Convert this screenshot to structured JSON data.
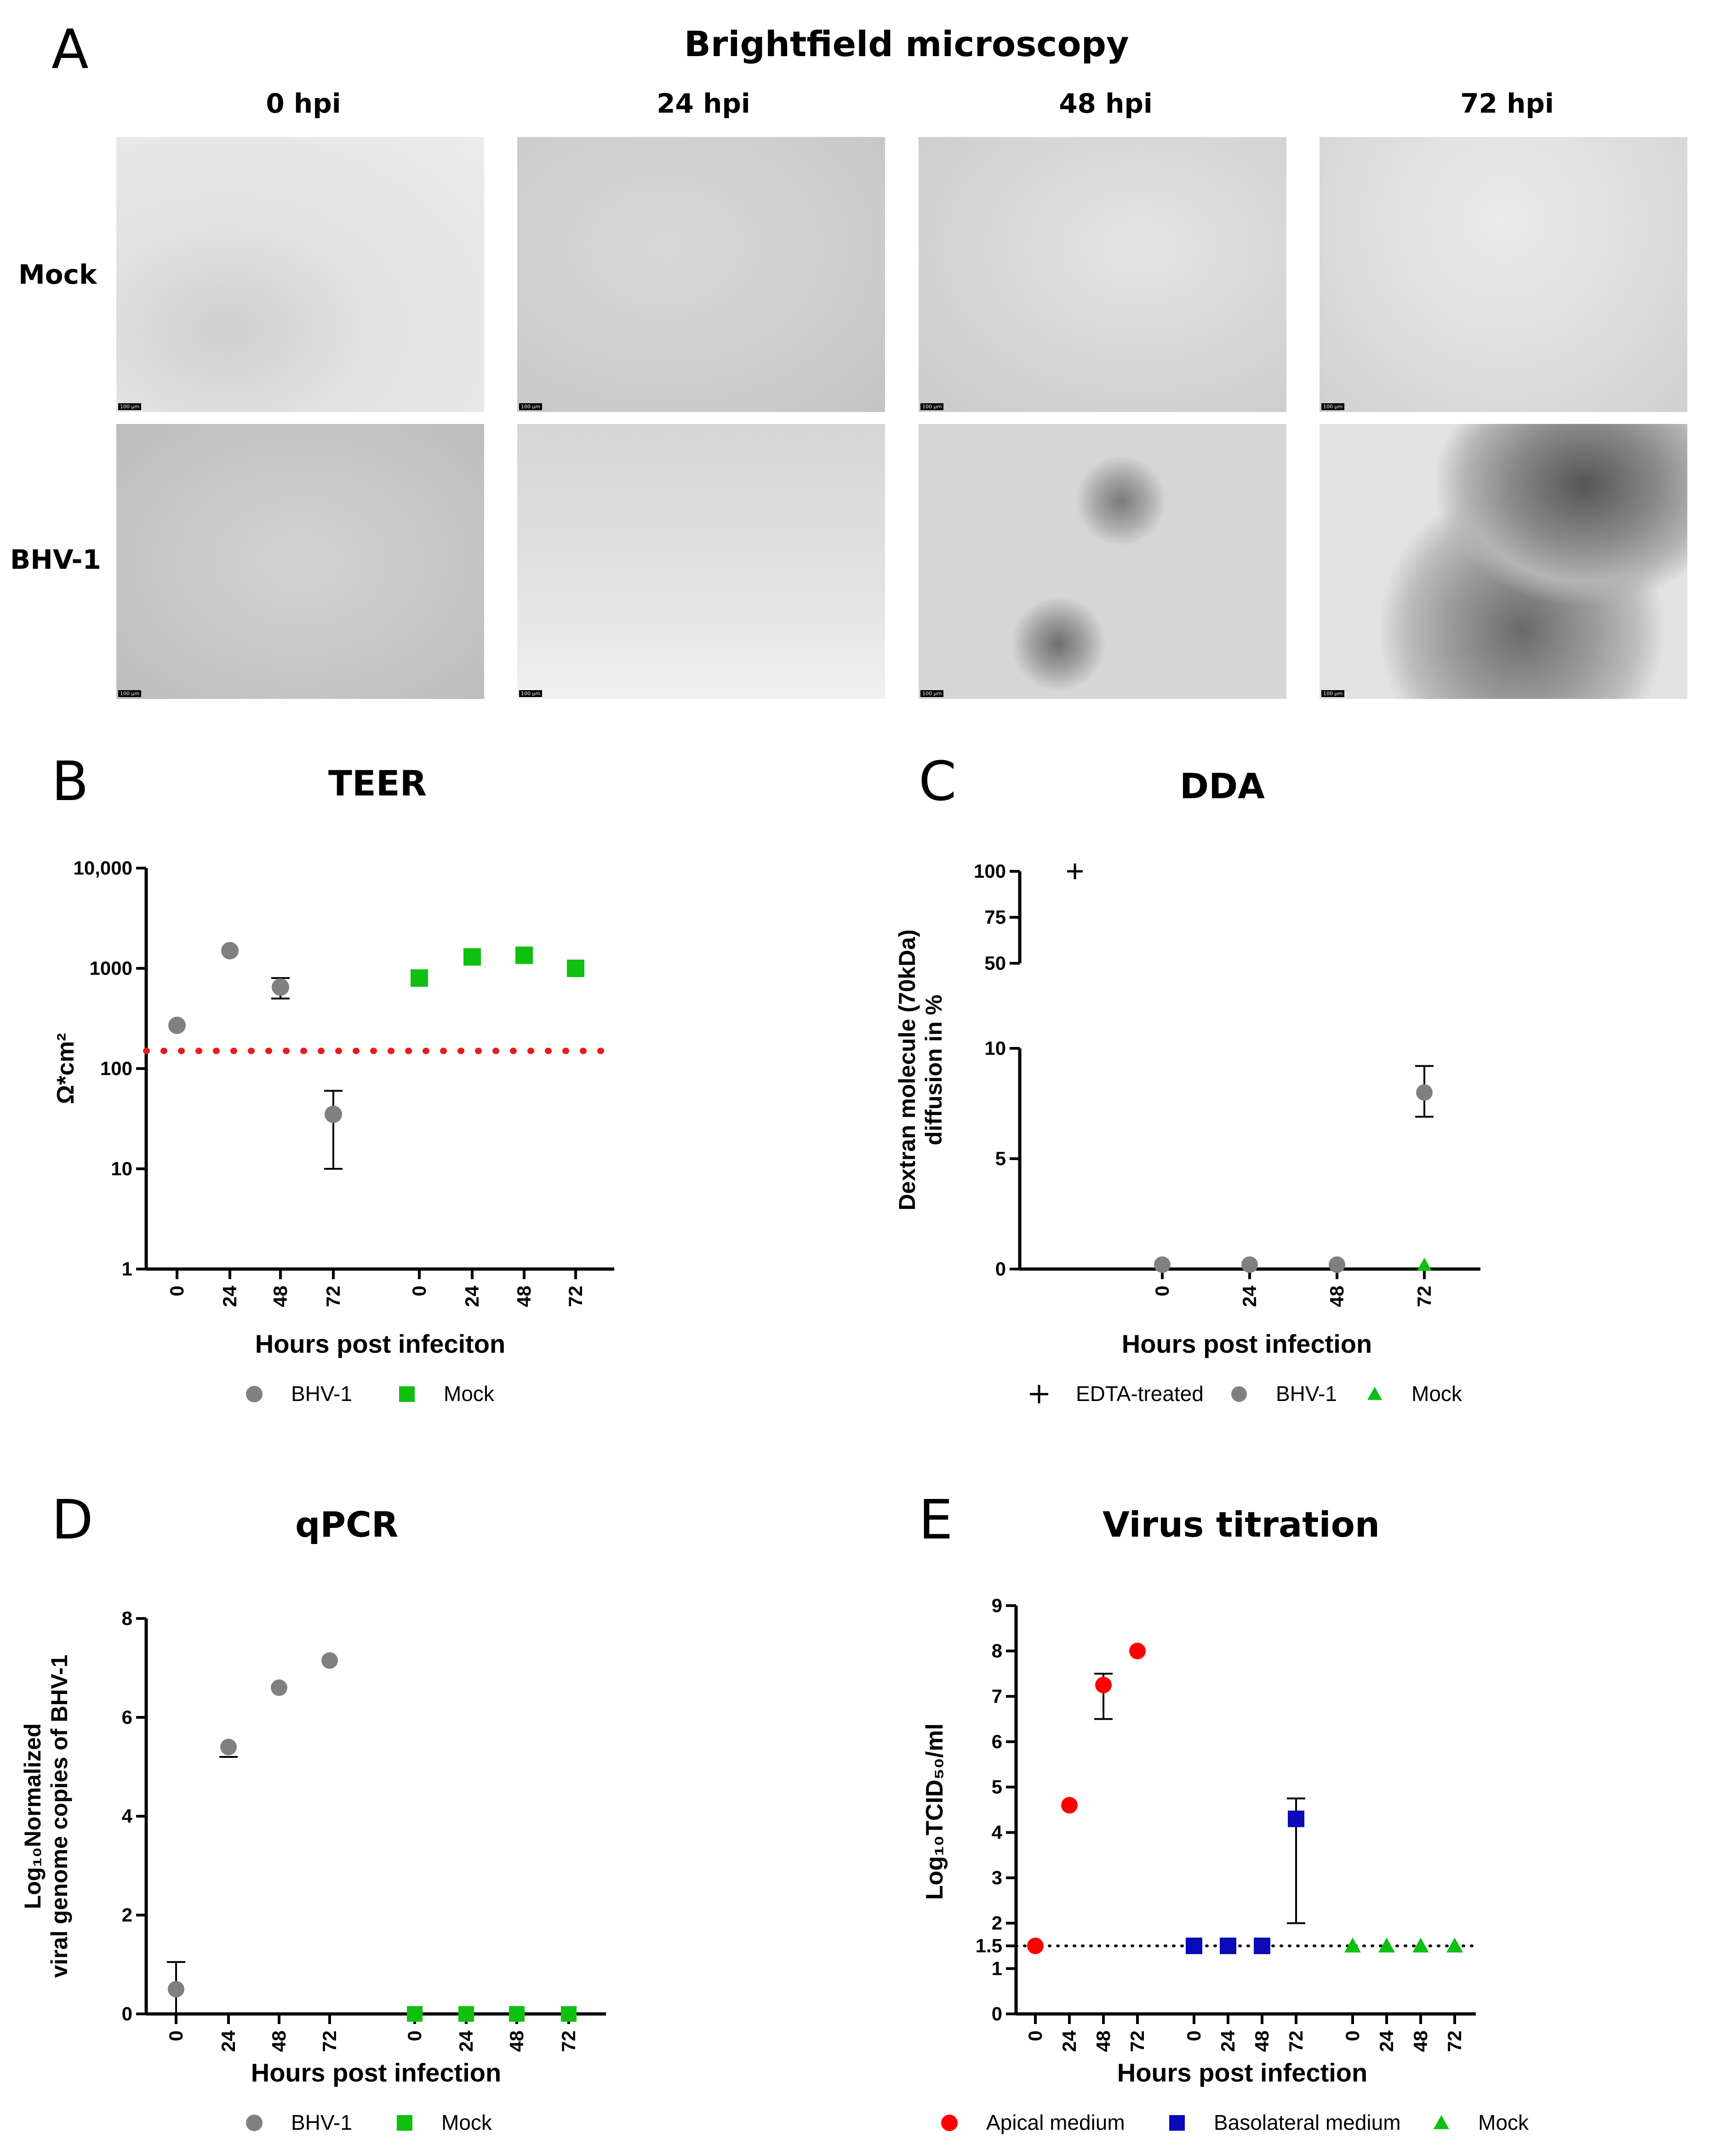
{
  "panelA": {
    "letter": "A",
    "title": "Brightfield microscopy",
    "columns": [
      "0 hpi",
      "24 hpi",
      "48 hpi",
      "72 hpi"
    ],
    "rows": [
      "Mock",
      "BHV-1"
    ],
    "scale_bar": "100 µm"
  },
  "colors": {
    "bhv": "#808080",
    "mock": "#10c010",
    "apical": "#ff0000",
    "basolateral": "#0a0ab8",
    "threshold": "#e81c1c"
  },
  "chart_data": [
    {
      "id": "B",
      "letter": "B",
      "type": "scatter",
      "title": "TEER",
      "xlabel": "Hours post infeciton",
      "ylabel": "Ω*cm²",
      "yscale": "log",
      "ylim": [
        1,
        10000
      ],
      "yticks": [
        1,
        10,
        100,
        1000,
        10000
      ],
      "ytick_labels": [
        "1",
        "10",
        "100",
        "1000",
        "10,000"
      ],
      "xtick_labels": [
        "0",
        "24",
        "48",
        "72",
        "0",
        "24",
        "48",
        "72"
      ],
      "threshold": 150,
      "series": [
        {
          "name": "BHV-1",
          "marker": "circle",
          "color": "#808080",
          "x": [
            "0",
            "24",
            "48",
            "72"
          ],
          "y": [
            270,
            1500,
            650,
            35
          ],
          "err_low": [
            null,
            null,
            500,
            10
          ],
          "err_high": [
            null,
            null,
            800,
            60
          ]
        },
        {
          "name": "Mock",
          "marker": "square",
          "color": "#10c010",
          "x": [
            "0",
            "24",
            "48",
            "72"
          ],
          "y": [
            800,
            1300,
            1350,
            1000
          ],
          "err_low": [
            null,
            null,
            null,
            null
          ],
          "err_high": [
            null,
            null,
            null,
            null
          ]
        }
      ],
      "legend": [
        "BHV-1",
        "Mock"
      ]
    },
    {
      "id": "C",
      "letter": "C",
      "type": "scatter",
      "title": "DDA",
      "xlabel": "Hours post infection",
      "ylabel": "Dextran molecule (70kDa) diffusion in %",
      "ylim_lower": [
        0,
        10
      ],
      "ylim_upper": [
        50,
        100
      ],
      "yticks_lower": [
        0,
        5,
        10
      ],
      "yticks_upper": [
        50,
        75,
        100
      ],
      "xtick_labels": [
        "0",
        "24",
        "48",
        "72"
      ],
      "series": [
        {
          "name": "EDTA-treated",
          "marker": "plus",
          "color": "#000000",
          "y": [
            100
          ]
        },
        {
          "name": "BHV-1",
          "marker": "circle",
          "color": "#808080",
          "x": [
            "0",
            "24",
            "48",
            "72"
          ],
          "y": [
            0.2,
            0.2,
            0.2,
            8.0
          ],
          "err_low": [
            null,
            null,
            null,
            6.9
          ],
          "err_high": [
            null,
            null,
            null,
            9.2
          ]
        },
        {
          "name": "Mock",
          "marker": "triangle",
          "color": "#10c010",
          "x": [
            "0",
            "24",
            "48",
            "72"
          ],
          "y": [
            0,
            0,
            0,
            0.1
          ]
        }
      ],
      "legend": [
        "EDTA-treated",
        "BHV-1",
        "Mock"
      ]
    },
    {
      "id": "D",
      "letter": "D",
      "type": "scatter",
      "title": "qPCR",
      "xlabel": "Hours post infection",
      "ylabel_line1": "Log₁₀Normalized",
      "ylabel_line2": "viral genome copies of BHV-1",
      "ylim": [
        0,
        8
      ],
      "yticks": [
        0,
        2,
        4,
        6,
        8
      ],
      "xtick_labels": [
        "0",
        "24",
        "48",
        "72",
        "0",
        "24",
        "48",
        "72"
      ],
      "series": [
        {
          "name": "BHV-1",
          "marker": "circle",
          "color": "#808080",
          "x": [
            "0",
            "24",
            "48",
            "72"
          ],
          "y": [
            0.5,
            5.4,
            6.6,
            7.15
          ],
          "err_low": [
            0,
            5.2,
            null,
            null
          ],
          "err_high": [
            1.05,
            null,
            null,
            null
          ]
        },
        {
          "name": "Mock",
          "marker": "square",
          "color": "#10c010",
          "x": [
            "0",
            "24",
            "48",
            "72"
          ],
          "y": [
            0,
            0,
            0,
            0
          ]
        }
      ],
      "legend": [
        "BHV-1",
        "Mock"
      ]
    },
    {
      "id": "E",
      "letter": "E",
      "type": "scatter",
      "title": "Virus titration",
      "xlabel": "Hours post infection",
      "ylabel": "Log₁₀TCID₅₀/ml",
      "ylim": [
        0,
        9
      ],
      "yticks": [
        0,
        1,
        1.5,
        2,
        3,
        4,
        5,
        6,
        7,
        8,
        9
      ],
      "ytick_labels": [
        "0",
        "1",
        "1.5",
        "2",
        "3",
        "4",
        "5",
        "6",
        "7",
        "8",
        "9"
      ],
      "detection_limit": 1.5,
      "xtick_labels": [
        "0",
        "24",
        "48",
        "72",
        "0",
        "24",
        "48",
        "72",
        "0",
        "24",
        "48",
        "72"
      ],
      "series": [
        {
          "name": "Apical medium",
          "marker": "circle",
          "color": "#ff0000",
          "x": [
            "0",
            "24",
            "48",
            "72"
          ],
          "y": [
            1.5,
            4.6,
            7.25,
            8.0
          ],
          "err_low": [
            null,
            null,
            6.5,
            null
          ],
          "err_high": [
            null,
            null,
            7.5,
            null
          ]
        },
        {
          "name": "Basolateral medium",
          "marker": "square",
          "color": "#0a0ab8",
          "x": [
            "0",
            "24",
            "48",
            "72"
          ],
          "y": [
            1.5,
            1.5,
            1.5,
            4.3
          ],
          "err_low": [
            null,
            null,
            null,
            2.0
          ],
          "err_high": [
            null,
            null,
            null,
            4.75
          ]
        },
        {
          "name": "Mock",
          "marker": "triangle",
          "color": "#10c010",
          "x": [
            "0",
            "24",
            "48",
            "72"
          ],
          "y": [
            1.5,
            1.5,
            1.5,
            1.5
          ]
        }
      ],
      "legend": [
        "Apical medium",
        "Basolateral medium",
        "Mock"
      ]
    }
  ]
}
